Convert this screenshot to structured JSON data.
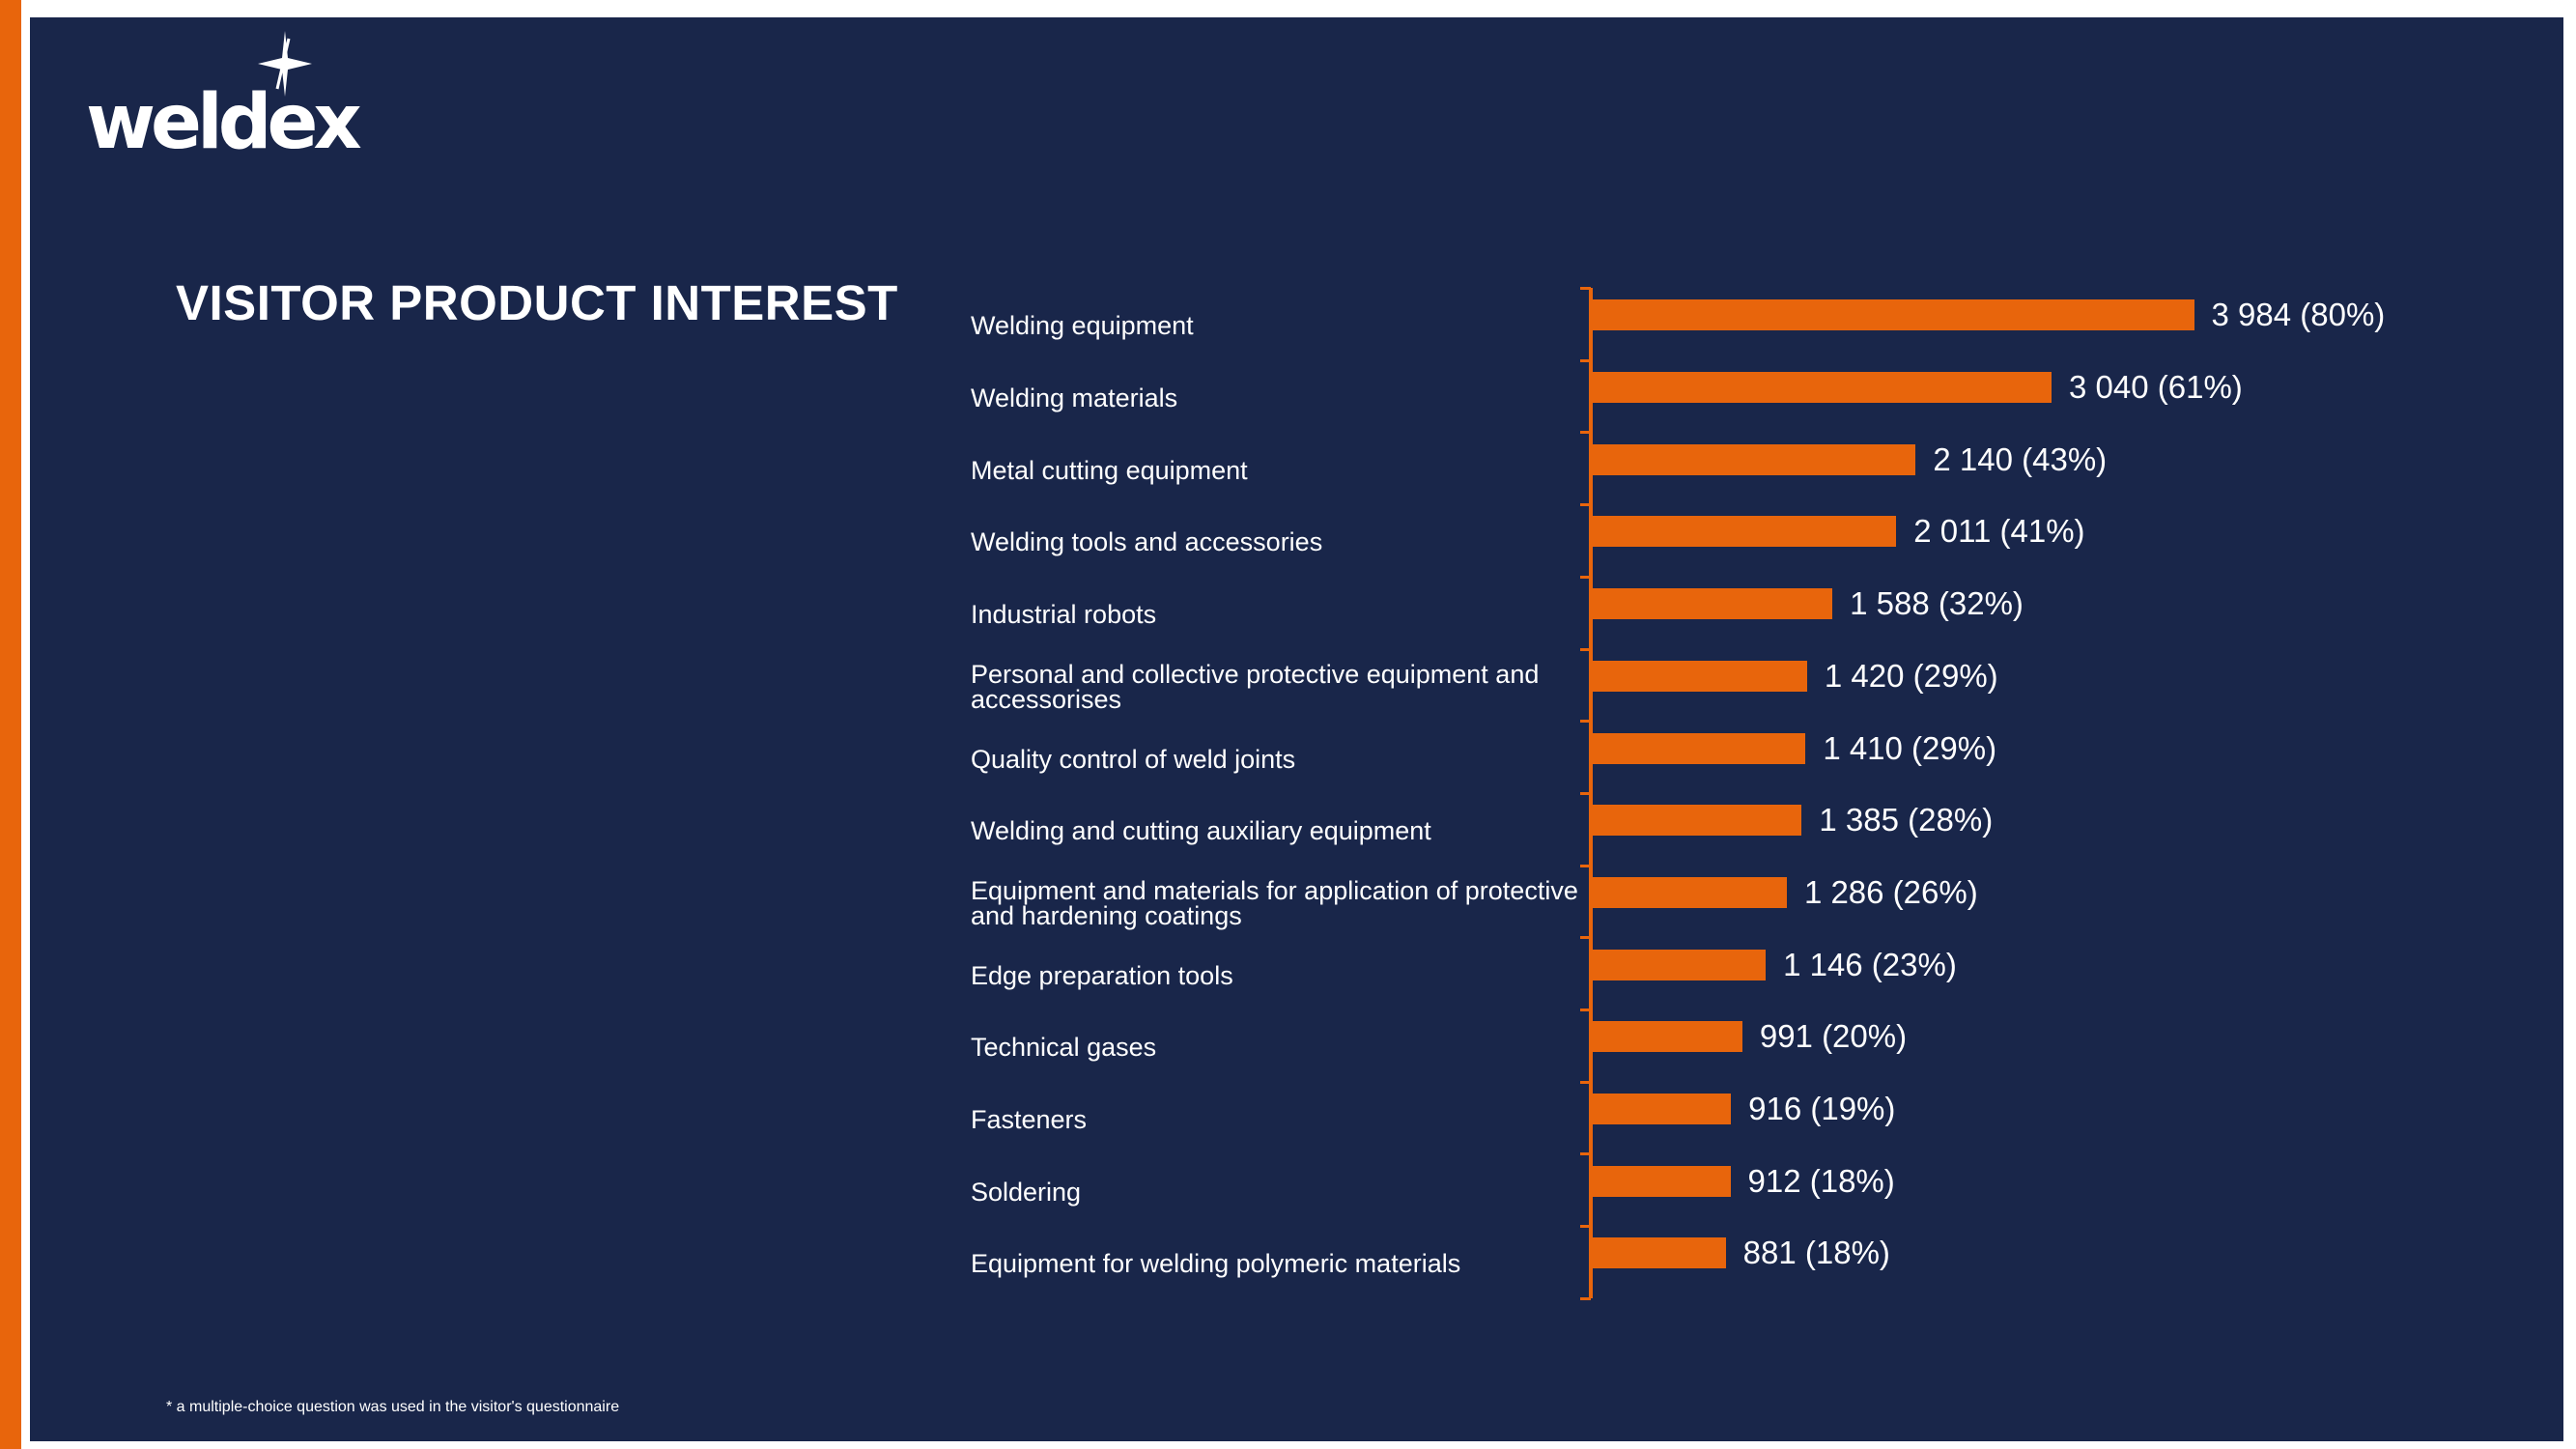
{
  "brand": {
    "logo_text": "weldex",
    "accent_color": "#e8650c",
    "background_color": "#19264a"
  },
  "title": "VISITOR PRODUCT INTEREST",
  "footnote": "* a multiple-choice question was used in the visitor's questionnaire",
  "chart_data": {
    "type": "bar",
    "orientation": "horizontal",
    "title": "VISITOR PRODUCT INTEREST",
    "xlabel": "",
    "ylabel": "",
    "xlim": [
      0,
      4000
    ],
    "grid": false,
    "legend": "none",
    "bar_color": "#e8650c",
    "categories": [
      "Welding equipment",
      "Welding materials",
      "Metal cutting equipment",
      "Welding tools and accessories",
      "Industrial robots",
      "Personal and collective protective equipment and accessorises",
      "Quality control of weld joints",
      "Welding and cutting auxiliary equipment",
      "Equipment and materials for application of protective and hardening coatings",
      "Edge preparation tools",
      "Technical gases",
      "Fasteners",
      "Soldering",
      "Equipment for welding polymeric materials"
    ],
    "values": [
      3984,
      3040,
      2140,
      2011,
      1588,
      1420,
      1410,
      1385,
      1286,
      1146,
      991,
      916,
      912,
      881
    ],
    "data_labels": [
      "3 984 (80%)",
      "3 040 (61%)",
      "2 140 (43%)",
      "2 011 (41%)",
      "1 588 (32%)",
      "1 420 (29%)",
      "1 410 (29%)",
      "1 385 (28%)",
      "1 286 (26%)",
      "1 146 (23%)",
      "991 (20%)",
      "916 (19%)",
      "912 (18%)",
      "881 (18%)"
    ]
  }
}
